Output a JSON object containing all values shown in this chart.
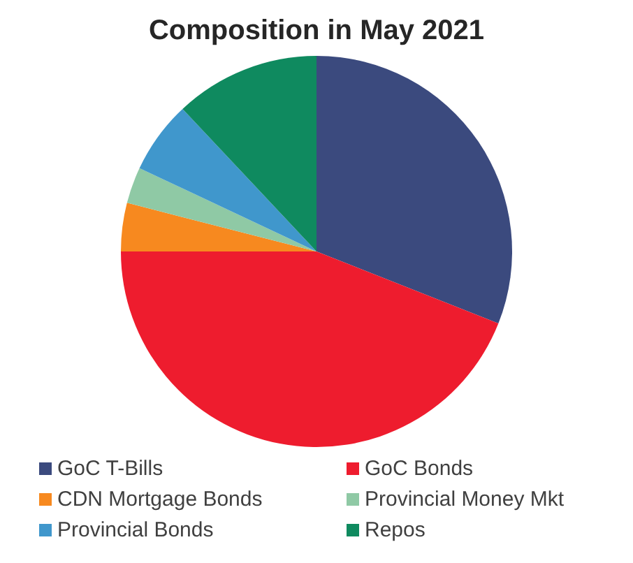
{
  "chart_data": {
    "type": "pie",
    "title": "Composition in May 2021",
    "categories": [
      "GoC T-Bills",
      "GoC Bonds",
      "CDN Mortgage Bonds",
      "Provincial Money Mkt",
      "Provincial Bonds",
      "Repos"
    ],
    "values": [
      31,
      44,
      4,
      3,
      6,
      12
    ],
    "colors": [
      "#3b4a7e",
      "#ee1c2e",
      "#f7891f",
      "#8fc9a5",
      "#4097cc",
      "#0f8a5f"
    ],
    "legend": "bottom"
  }
}
